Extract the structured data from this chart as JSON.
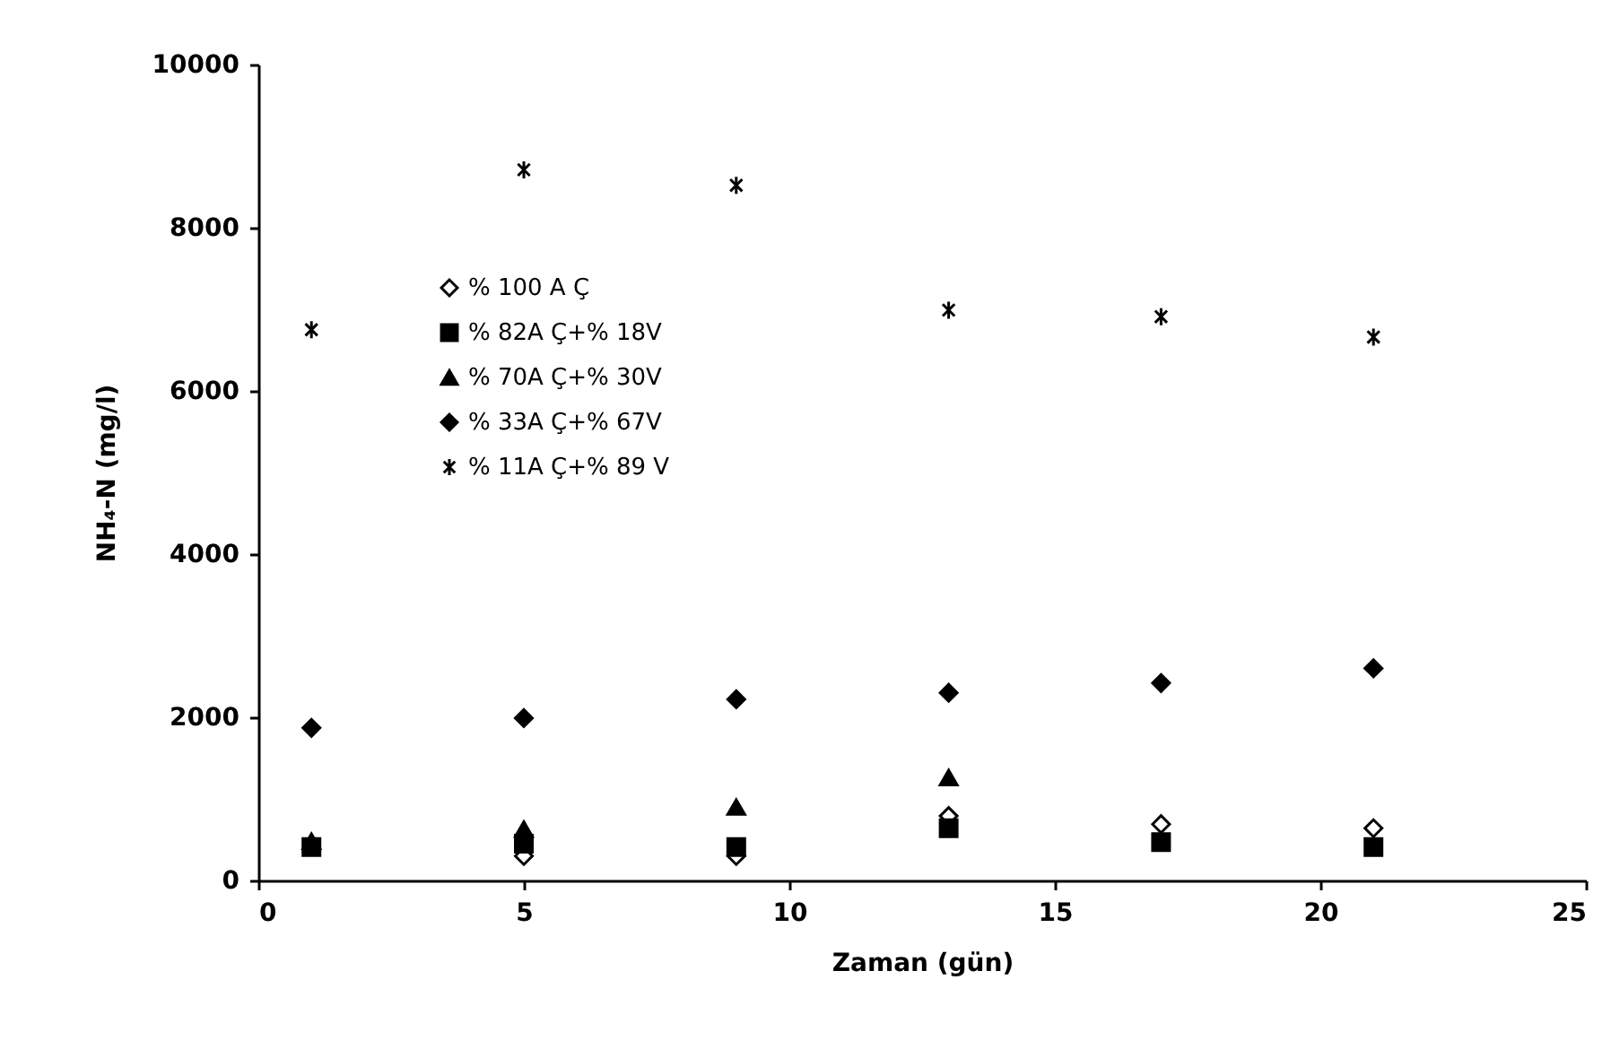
{
  "chart_data": {
    "type": "scatter",
    "xlabel": "Zaman (gün)",
    "ylabel": "NH₄-N (mg/l)",
    "x": [
      1,
      5,
      9,
      13,
      17,
      21
    ],
    "xlim": [
      0,
      25
    ],
    "xticks": [
      0,
      5,
      10,
      15,
      20,
      25
    ],
    "ylim": [
      0,
      10000
    ],
    "yticks": [
      0,
      2000,
      4000,
      6000,
      8000,
      10000
    ],
    "grid": false,
    "legend": "top left",
    "series": [
      {
        "name": "% 100 A Ç",
        "color": "#ffffff",
        "marker": "diamond",
        "values": [
          null,
          300,
          300,
          790,
          690,
          640
        ]
      },
      {
        "name": "%  82A Ç+% 18V",
        "color": "#000000",
        "marker": "square",
        "values": [
          410,
          450,
          410,
          640,
          470,
          410
        ]
      },
      {
        "name": "% 70A Ç+% 30V",
        "color": "#000000",
        "marker": "triangle",
        "values": [
          480,
          630,
          900,
          1260,
          null,
          null
        ]
      },
      {
        "name": "% 33A Ç+% 67V",
        "color": "#000000",
        "marker": "diamond",
        "values": [
          1870,
          1990,
          2220,
          2300,
          2420,
          2600
        ]
      },
      {
        "name": "% 11A Ç+% 89 V",
        "color": "#000000",
        "marker": "cross",
        "values": [
          6750,
          8710,
          8520,
          6990,
          6910,
          6660
        ]
      }
    ]
  }
}
